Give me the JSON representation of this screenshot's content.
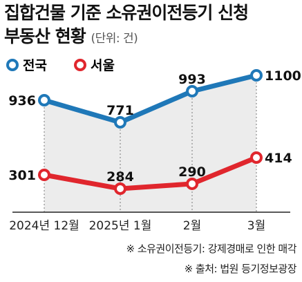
{
  "title_line1": "집합건물 기준 소유권이전등기 신청",
  "title_line2": "부동산 현황",
  "unit": "(단위: 건)",
  "chart_data": {
    "type": "line",
    "categories": [
      "2024년 12월",
      "2025년 1월",
      "2월",
      "3월"
    ],
    "series": [
      {
        "name": "전국",
        "color": "#1f78b8",
        "values": [
          936,
          771,
          993,
          1100
        ]
      },
      {
        "name": "서울",
        "color": "#e0262d",
        "values": [
          301,
          284,
          290,
          414
        ]
      }
    ],
    "area_fill": "#ececec"
  },
  "notes": [
    "※ 소유권이전등기: 강제경매로 인한 매각",
    "※ 출처: 법원 등기정보광장"
  ]
}
